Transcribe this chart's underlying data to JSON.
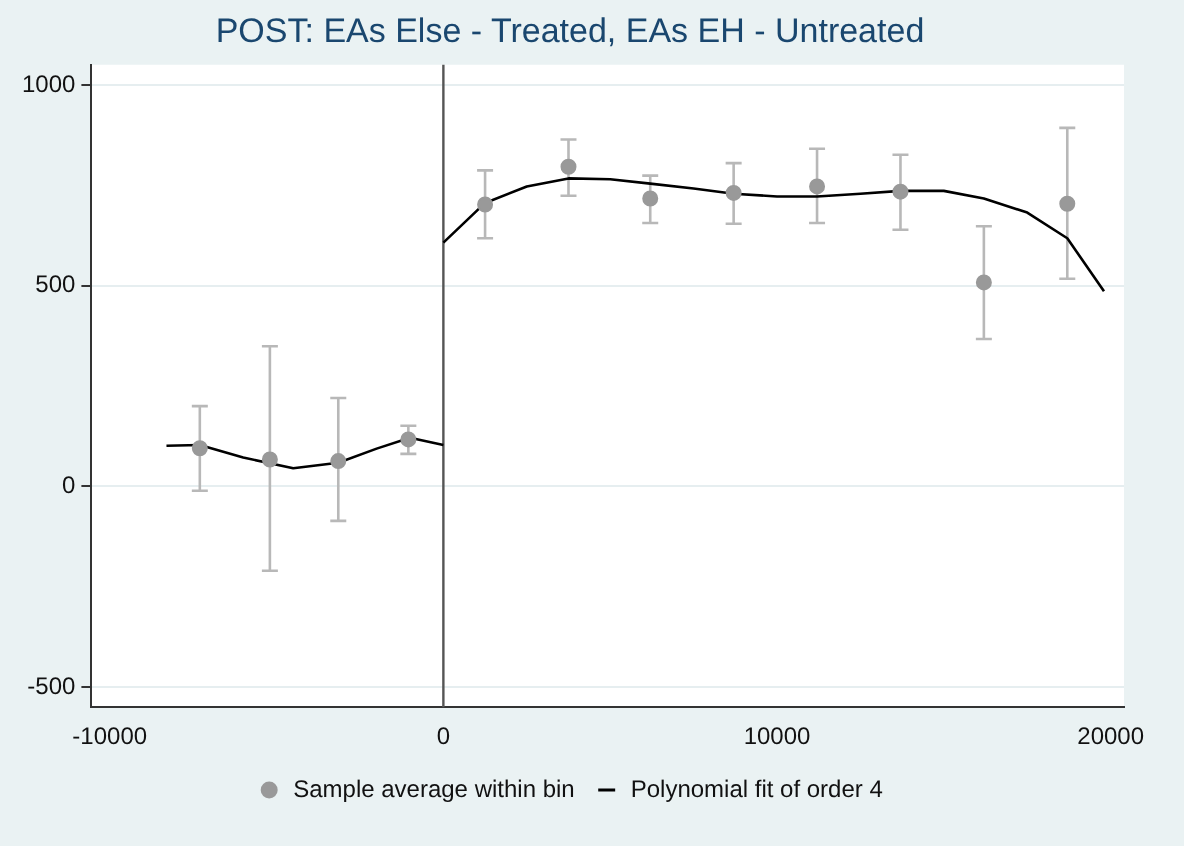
{
  "chart_data": {
    "type": "scatter",
    "title": "POST: EAs Else - Treated, EAs EH - Untreated",
    "xlim": [
      -10550,
      20400
    ],
    "xticks": [
      -10000,
      0,
      10000,
      20000
    ],
    "ylim": [
      -550,
      1050
    ],
    "yticks": [
      -500,
      0,
      500,
      1000
    ],
    "grid": "y",
    "legend": "bottom",
    "marker": "circle",
    "ref_lines": [
      {
        "axis": "x",
        "value": 0,
        "color": "#555555"
      }
    ],
    "series": [
      {
        "name": "Sample average within bin",
        "color": "#999999",
        "x": [
          -7300,
          -5200,
          -3150,
          -1050,
          1250,
          3750,
          6200,
          8700,
          11200,
          13700,
          16200,
          18700
        ],
        "values": [
          95,
          67,
          63,
          117,
          702,
          796,
          717,
          731,
          747,
          734,
          508,
          704
        ],
        "errors": [
          [
            -11,
            200
          ],
          [
            -210,
            349
          ],
          [
            -86,
            220
          ],
          [
            81,
            151
          ],
          [
            618,
            787
          ],
          [
            724,
            864
          ],
          [
            656,
            774
          ],
          [
            654,
            805
          ],
          [
            656,
            841
          ],
          [
            639,
            826
          ],
          [
            367,
            648
          ],
          [
            517,
            893
          ]
        ]
      },
      {
        "name": "Polynomial fit of order 4",
        "type": "line",
        "color": "#000000",
        "marker": "none",
        "x": [
          -8300,
          -7300,
          -6000,
          -4500,
          -3150,
          -2000,
          -1000,
          0
        ],
        "values": [
          101,
          103,
          72,
          45,
          59,
          94,
          121,
          103
        ]
      },
      {
        "type": "line",
        "color": "#000000",
        "marker": "none",
        "x": [
          0,
          1250,
          2500,
          3750,
          5000,
          6200,
          7500,
          8700,
          10000,
          11200,
          12500,
          13700,
          15000,
          16200,
          17500,
          18700,
          19800
        ],
        "values": [
          607,
          706,
          747,
          767,
          765,
          754,
          742,
          729,
          722,
          722,
          729,
          736,
          736,
          717,
          682,
          618,
          486
        ]
      }
    ]
  }
}
